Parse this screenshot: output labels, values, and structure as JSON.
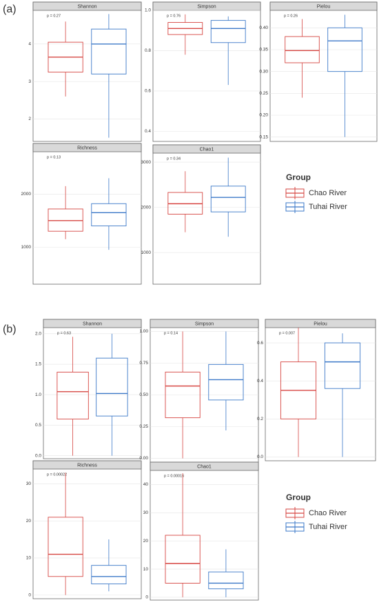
{
  "panel_labels": [
    "(a)",
    "(b)"
  ],
  "legends": [
    {
      "title": "Group",
      "items": [
        {
          "name": "Chao River",
          "color": "#d64541"
        },
        {
          "name": "Tuhai River",
          "color": "#3b78c8"
        }
      ]
    },
    {
      "title": "Group",
      "items": [
        {
          "name": "Chao River",
          "color": "#d64541"
        },
        {
          "name": "Tuhai River",
          "color": "#3b78c8"
        }
      ]
    }
  ],
  "chart_data": [
    {
      "type": "box",
      "title": "Shannon",
      "annotation": "p = 0.27",
      "ylim": [
        1.4,
        4.9
      ],
      "yticks": [
        2,
        3,
        4
      ],
      "grid": true,
      "boxes": [
        {
          "color": "#d64541",
          "min": 2.6,
          "q1": 3.25,
          "median": 3.65,
          "q3": 4.05,
          "max": 4.6
        },
        {
          "color": "#3b78c8",
          "min": 1.5,
          "q1": 3.2,
          "median": 4.0,
          "q3": 4.4,
          "max": 4.8
        }
      ]
    },
    {
      "type": "box",
      "title": "Simpson",
      "annotation": "p = 0.76",
      "ylim": [
        0.35,
        1.0
      ],
      "yticks": [
        0.4,
        0.6,
        0.8,
        {
          "value": 1,
          "label": "1.0"
        }
      ],
      "grid": true,
      "boxes": [
        {
          "color": "#d64541",
          "min": 0.78,
          "q1": 0.88,
          "median": 0.91,
          "q3": 0.94,
          "max": 0.98
        },
        {
          "color": "#3b78c8",
          "min": 0.63,
          "q1": 0.84,
          "median": 0.91,
          "q3": 0.95,
          "max": 0.97
        }
      ]
    },
    {
      "type": "box",
      "title": "Pielou",
      "annotation": "p = 0.26",
      "ylim": [
        0.14,
        0.44
      ],
      "yticks": [
        0.15,
        {
          "value": 0.2,
          "label": "0.20"
        },
        0.25,
        {
          "value": 0.3,
          "label": "0.30"
        },
        0.35,
        {
          "value": 0.4,
          "label": "0.40"
        }
      ],
      "grid": true,
      "boxes": [
        {
          "color": "#d64541",
          "min": 0.24,
          "q1": 0.32,
          "median": 0.348,
          "q3": 0.38,
          "max": 0.42
        },
        {
          "color": "#3b78c8",
          "min": 0.15,
          "q1": 0.3,
          "median": 0.37,
          "q3": 0.4,
          "max": 0.43
        }
      ]
    },
    {
      "type": "box",
      "title": "Richness",
      "annotation": "p = 0.13",
      "ylim": [
        300,
        2800
      ],
      "yticks": [
        1000,
        2000
      ],
      "grid": true,
      "boxes": [
        {
          "color": "#d64541",
          "min": 1150,
          "q1": 1300,
          "median": 1500,
          "q3": 1720,
          "max": 2150
        },
        {
          "color": "#3b78c8",
          "min": 950,
          "q1": 1400,
          "median": 1650,
          "q3": 1820,
          "max": 2300
        }
      ]
    },
    {
      "type": "box",
      "title": "Chao1",
      "annotation": "p = 0.34",
      "ylim": [
        300,
        3200
      ],
      "yticks": [
        1000,
        2000,
        3000
      ],
      "grid": true,
      "boxes": [
        {
          "color": "#d64541",
          "min": 1450,
          "q1": 1850,
          "median": 2080,
          "q3": 2330,
          "max": 2800
        },
        {
          "color": "#3b78c8",
          "min": 1350,
          "q1": 1900,
          "median": 2220,
          "q3": 2470,
          "max": 3100
        }
      ]
    },
    {
      "type": "box",
      "title": "Shannon",
      "annotation": "p = 0.63",
      "ylim": [
        -0.05,
        2.1
      ],
      "yticks": [
        {
          "value": 0,
          "label": "0.0"
        },
        0.5,
        {
          "value": 1,
          "label": "1.0"
        },
        1.5,
        {
          "value": 2,
          "label": "2.0"
        }
      ],
      "grid": true,
      "boxes": [
        {
          "color": "#d64541",
          "min": 0,
          "q1": 0.6,
          "median": 1.05,
          "q3": 1.37,
          "max": 1.95
        },
        {
          "color": "#3b78c8",
          "min": 0,
          "q1": 0.65,
          "median": 1.02,
          "q3": 1.6,
          "max": 2.0
        }
      ]
    },
    {
      "type": "box",
      "title": "Simpson",
      "annotation": "p = 0.14",
      "ylim": [
        -0.03,
        1.03
      ],
      "yticks": [
        {
          "value": 0,
          "label": "0.00"
        },
        0.25,
        {
          "value": 0.5,
          "label": "0.50"
        },
        0.75,
        {
          "value": 1,
          "label": "1.00"
        }
      ],
      "grid": true,
      "boxes": [
        {
          "color": "#d64541",
          "min": 0,
          "q1": 0.32,
          "median": 0.57,
          "q3": 0.68,
          "max": 1.0
        },
        {
          "color": "#3b78c8",
          "min": 0.22,
          "q1": 0.46,
          "median": 0.62,
          "q3": 0.74,
          "max": 1.0
        }
      ]
    },
    {
      "type": "box",
      "title": "Pielou",
      "annotation": "p = 0.007",
      "ylim": [
        -0.02,
        0.68
      ],
      "yticks": [
        {
          "value": 0,
          "label": "0.0"
        },
        0.2,
        0.4,
        0.6
      ],
      "grid": true,
      "boxes": [
        {
          "color": "#d64541",
          "min": 0,
          "q1": 0.2,
          "median": 0.35,
          "q3": 0.5,
          "max": 0.68
        },
        {
          "color": "#3b78c8",
          "min": 0,
          "q1": 0.36,
          "median": 0.5,
          "q3": 0.6,
          "max": 0.65
        }
      ]
    },
    {
      "type": "box",
      "title": "Richness",
      "annotation": "p = 0.00022",
      "ylim": [
        -1,
        34
      ],
      "yticks": [
        0,
        10,
        20,
        30
      ],
      "grid": true,
      "boxes": [
        {
          "color": "#d64541",
          "min": 0,
          "q1": 5,
          "median": 11,
          "q3": 21,
          "max": 33
        },
        {
          "color": "#3b78c8",
          "min": 1,
          "q1": 3,
          "median": 5,
          "q3": 8,
          "max": 15
        }
      ]
    },
    {
      "type": "box",
      "title": "Chao1",
      "annotation": "p = 0.00016",
      "ylim": [
        -1,
        45
      ],
      "yticks": [
        0,
        10,
        20,
        30,
        40
      ],
      "grid": true,
      "boxes": [
        {
          "color": "#d64541",
          "min": 0,
          "q1": 5,
          "median": 12,
          "q3": 22,
          "max": 44
        },
        {
          "color": "#3b78c8",
          "min": 0,
          "q1": 3,
          "median": 5,
          "q3": 9,
          "max": 17
        }
      ]
    }
  ]
}
